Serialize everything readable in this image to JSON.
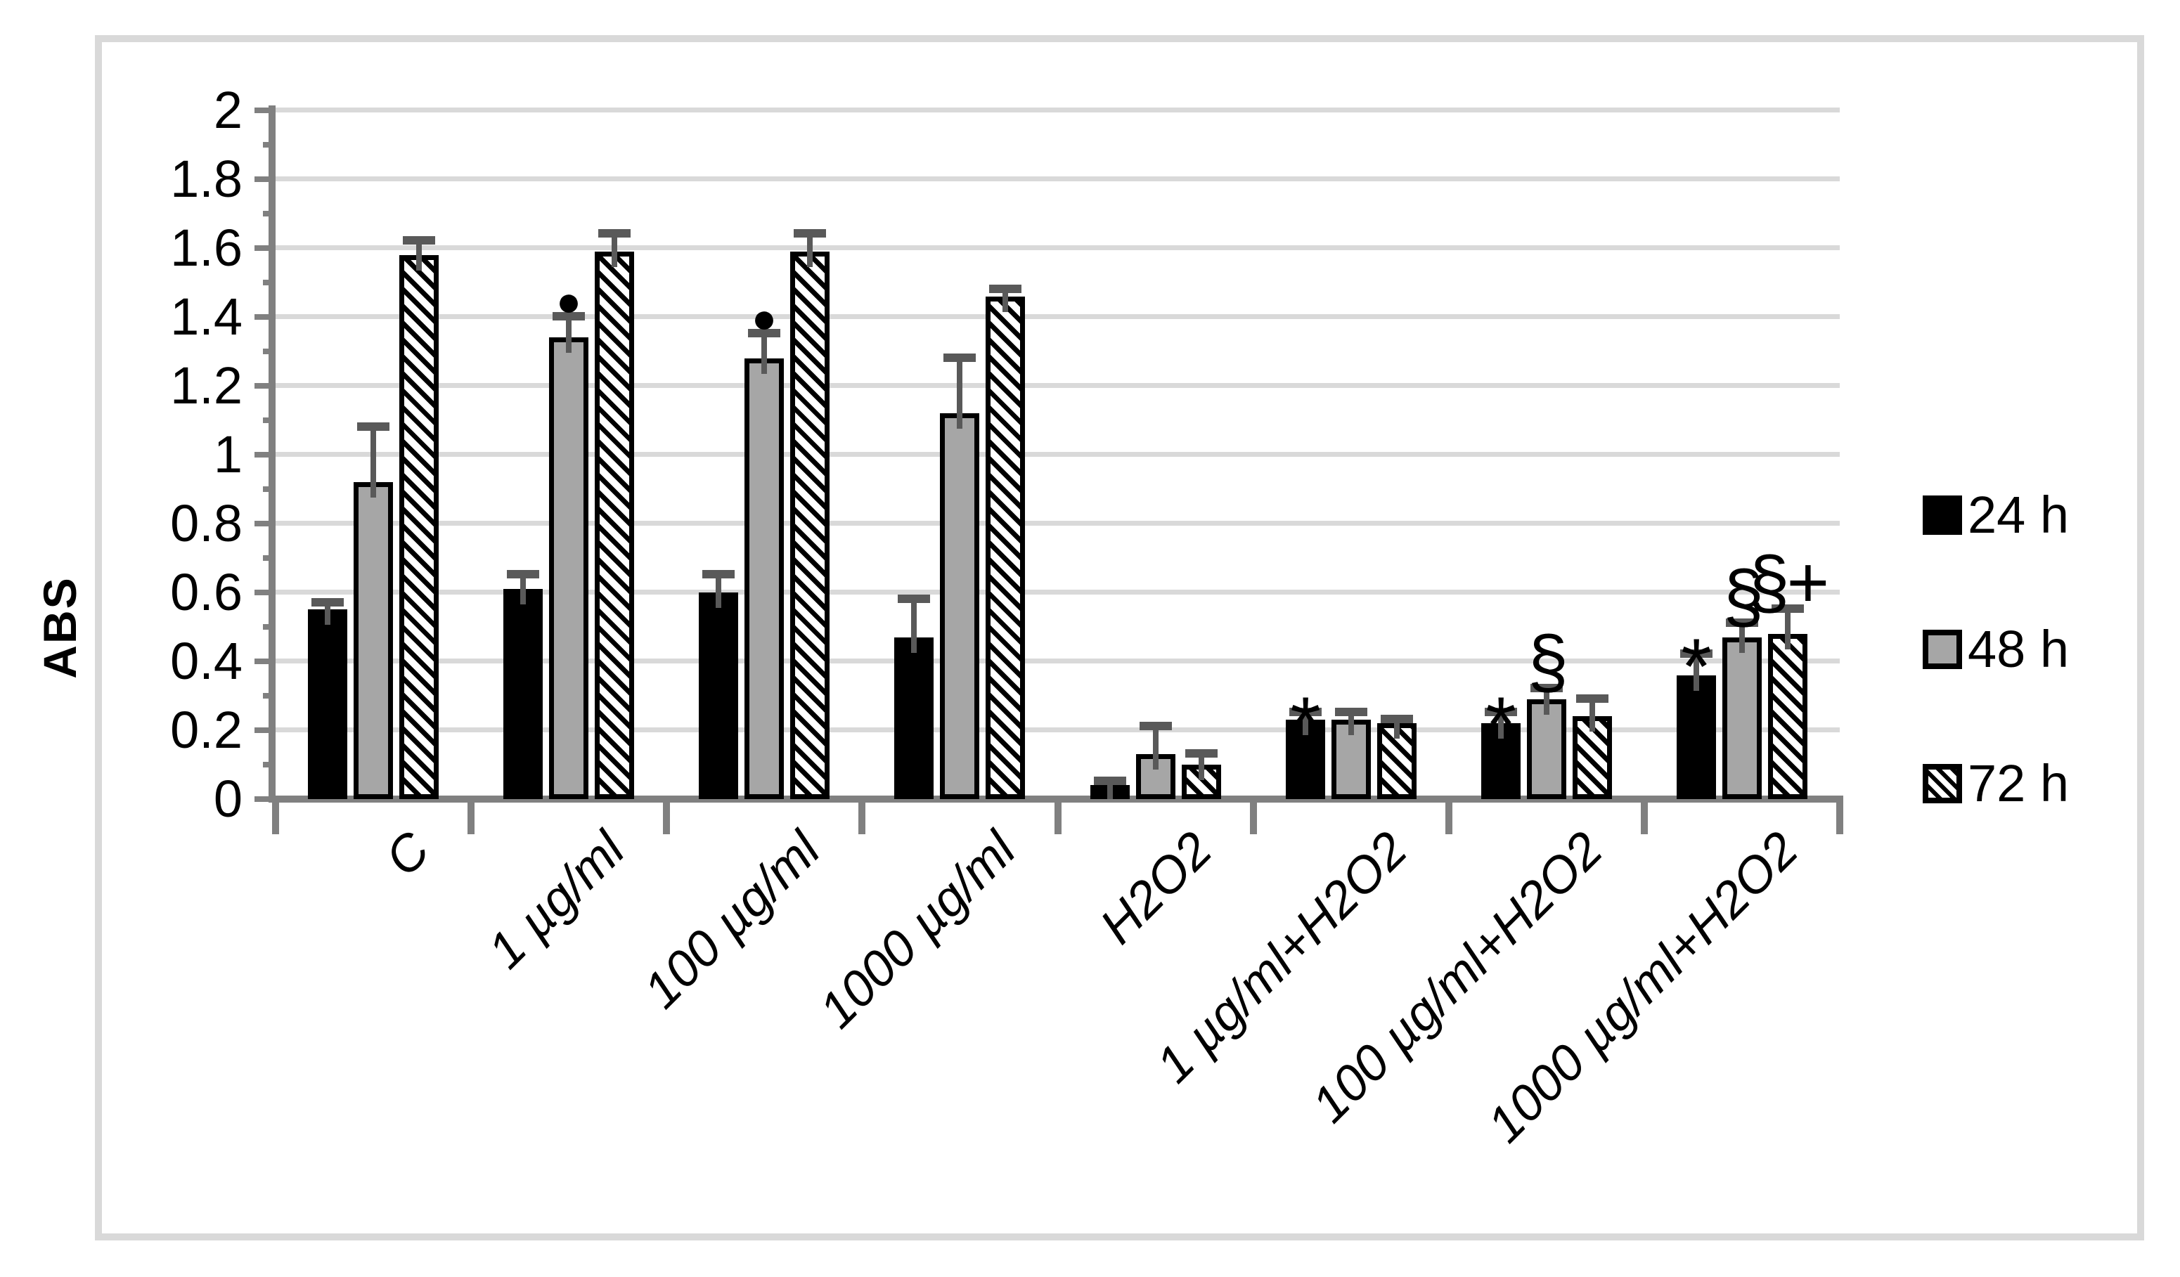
{
  "figure": {
    "background": "#ffffff",
    "frame_border_color": "#d9d9d9"
  },
  "chart_data": {
    "type": "bar",
    "title": "",
    "xlabel": "",
    "ylabel": "ABS",
    "ylim": [
      0,
      2
    ],
    "ytick_step": 0.2,
    "yticks": [
      "0",
      "0.2",
      "0.4",
      "0.6",
      "0.8",
      "1",
      "1.2",
      "1.4",
      "1.6",
      "1.8",
      "2"
    ],
    "grid": "horizontal",
    "legend_position": "right",
    "error_bars": "upper",
    "categories": [
      "C",
      "1 µg/ml",
      "100 µg/ml",
      "1000 µg/ml",
      "H2O2",
      "1 µg/ml+H2O2",
      "100 µg/ml+H2O2",
      "1000 µg/ml+H2O2"
    ],
    "series": [
      {
        "name": "24 h",
        "fill": "solid-black",
        "values": [
          0.55,
          0.61,
          0.6,
          0.47,
          0.04,
          0.23,
          0.22,
          0.36
        ],
        "errors": [
          0.02,
          0.04,
          0.05,
          0.11,
          0.01,
          0.02,
          0.03,
          0.06
        ],
        "annotations": [
          "",
          "",
          "",
          "",
          "",
          "*",
          "*",
          "*"
        ]
      },
      {
        "name": "48 h",
        "fill": "gray",
        "values": [
          0.92,
          1.34,
          1.28,
          1.12,
          0.13,
          0.23,
          0.29,
          0.47
        ],
        "errors": [
          0.16,
          0.06,
          0.07,
          0.16,
          0.08,
          0.02,
          0.03,
          0.04
        ],
        "annotations": [
          "",
          "●",
          "●",
          "",
          "",
          "",
          "§",
          "§"
        ]
      },
      {
        "name": "72 h",
        "fill": "diagonal-hatch",
        "values": [
          1.58,
          1.59,
          1.59,
          1.46,
          0.1,
          0.22,
          0.24,
          0.48
        ],
        "errors": [
          0.04,
          0.05,
          0.05,
          0.02,
          0.03,
          0.01,
          0.05,
          0.07
        ],
        "annotations": [
          "",
          "",
          "",
          "",
          "",
          "",
          "",
          "§+"
        ]
      }
    ],
    "colors": {
      "bar_24h": "#000000",
      "bar_48h_fill": "#a6a6a6",
      "bar_border": "#000000",
      "hatch_stripe": "#000000",
      "axis": "#808080",
      "error_bar": "#595959",
      "gridline": "#d9d9d9",
      "text": "#000000"
    }
  }
}
